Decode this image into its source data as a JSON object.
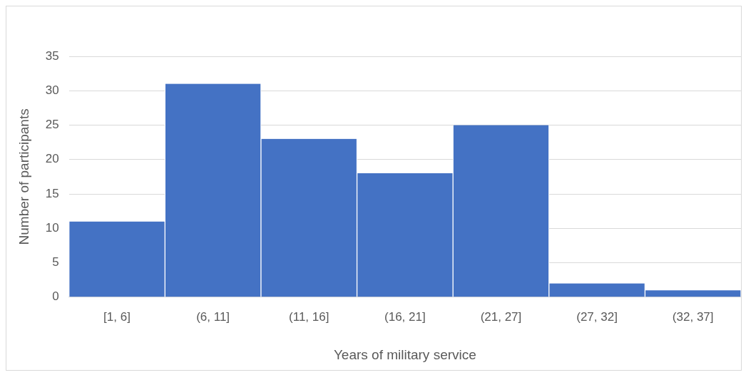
{
  "chart_data": {
    "type": "bar",
    "xlabel": "Years of military service",
    "ylabel": "Number of participants",
    "categories": [
      "[1, 6]",
      "(6, 11]",
      "(11, 16]",
      "(16, 21]",
      "(21, 27]",
      "(27, 32]",
      "(32, 37]"
    ],
    "values": [
      11,
      31,
      23,
      18,
      25,
      2,
      1
    ],
    "color": "#4472c4",
    "ylim": [
      0,
      35
    ],
    "yticks": [
      0,
      5,
      10,
      15,
      20,
      25,
      30,
      35
    ],
    "grid": "y",
    "legend": false
  }
}
